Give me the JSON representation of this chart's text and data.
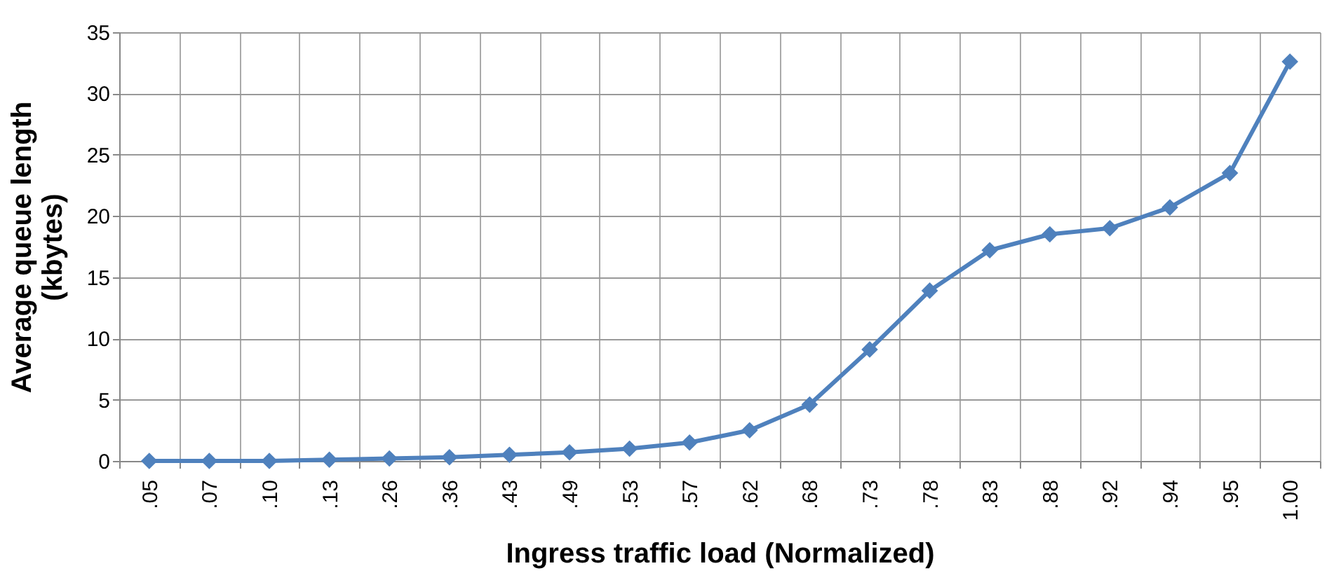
{
  "chart_data": {
    "type": "line",
    "xlabel": "Ingress traffic load (Normalized)",
    "ylabel": "Average queue length\n(kbytes)",
    "categories": [
      ".05",
      ".07",
      ".10",
      ".13",
      ".26",
      ".36",
      ".43",
      ".49",
      ".53",
      ".57",
      ".62",
      ".68",
      ".73",
      ".78",
      ".83",
      ".88",
      ".92",
      ".94",
      ".95",
      "1.00"
    ],
    "series": [
      {
        "color": "#4f81bd",
        "values": [
          0,
          0,
          0,
          0.1,
          0.2,
          0.3,
          0.5,
          0.7,
          1.0,
          1.5,
          2.5,
          4.6,
          9.1,
          13.9,
          17.2,
          18.5,
          19.0,
          20.7,
          23.5,
          32.6
        ]
      }
    ],
    "ylim": [
      0,
      35
    ],
    "yticks": [
      0,
      5,
      10,
      15,
      20,
      25,
      30,
      35
    ],
    "grid": true,
    "marker": "diamond",
    "line_style": "solid",
    "legend": false
  }
}
